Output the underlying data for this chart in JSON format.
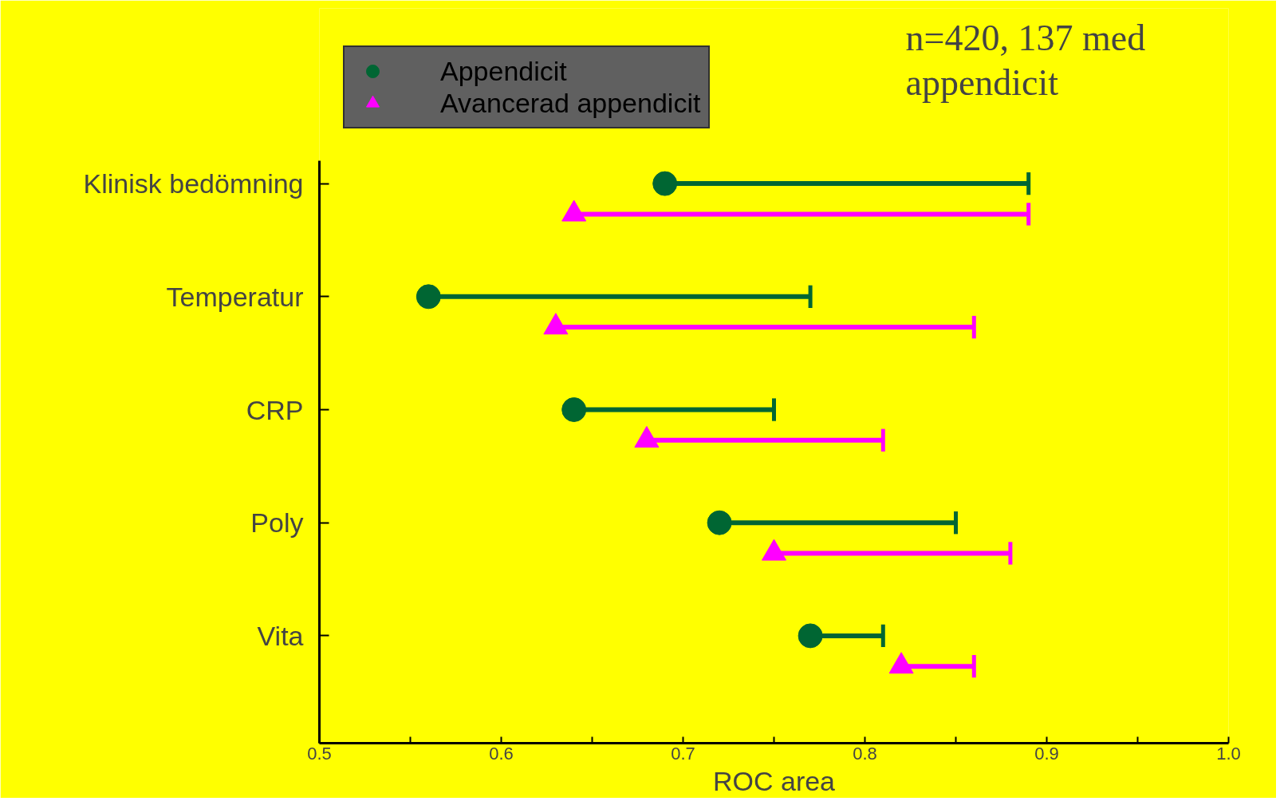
{
  "chart_data": {
    "type": "scatter",
    "orientation": "horizontal",
    "xlabel": "ROC area",
    "categories": [
      "Klinisk bedömning",
      "Temperatur",
      "CRP",
      "Poly",
      "Vita"
    ],
    "series": [
      {
        "name": "Appendicit",
        "color": "#006633",
        "marker": "circle",
        "values": [
          0.69,
          0.56,
          0.64,
          0.72,
          0.77
        ],
        "errors": [
          [
            0.69,
            0.89
          ],
          [
            0.56,
            0.77
          ],
          [
            0.64,
            0.75
          ],
          [
            0.72,
            0.85
          ],
          [
            0.77,
            0.81
          ]
        ]
      },
      {
        "name": "Avancerad appendicit",
        "color": "#ff00ff",
        "marker": "triangle",
        "values": [
          0.64,
          0.63,
          0.68,
          0.75,
          0.82
        ],
        "errors": [
          [
            0.64,
            0.89
          ],
          [
            0.63,
            0.86
          ],
          [
            0.68,
            0.81
          ],
          [
            0.75,
            0.88
          ],
          [
            0.82,
            0.86
          ]
        ]
      }
    ],
    "xlim": [
      0.5,
      1.0
    ],
    "xticks": [
      0.5,
      {
        "value": 0.55,
        "label": null
      },
      0.6,
      {
        "value": 0.65,
        "label": null
      },
      0.7,
      {
        "value": 0.75,
        "label": null
      },
      0.8,
      {
        "value": 0.85,
        "label": null
      },
      0.9,
      {
        "value": 0.95,
        "label": null
      },
      {
        "value": 1.0,
        "label": "1.0"
      }
    ],
    "annotations": [
      "n=420, 137 med\nappendicit"
    ],
    "legend": "top",
    "grid": false
  }
}
